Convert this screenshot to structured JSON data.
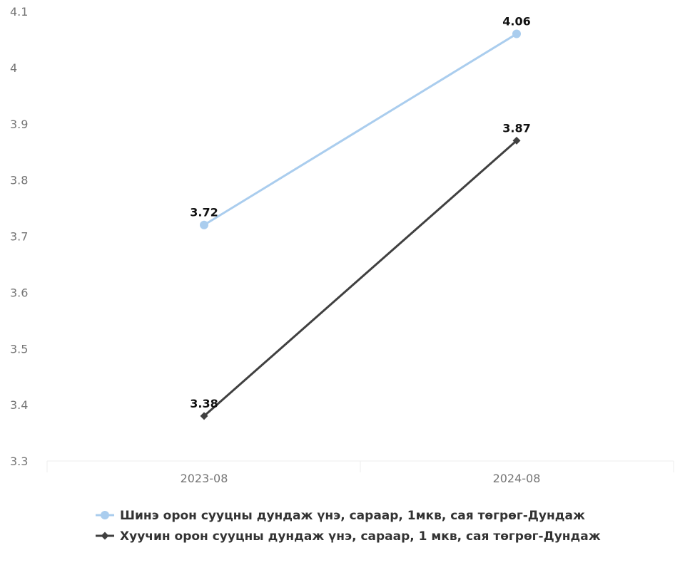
{
  "chart_data": {
    "type": "line",
    "categories": [
      "2023-08",
      "2024-08"
    ],
    "ylim": [
      3.3,
      4.1
    ],
    "yticks": [
      "3.3",
      "3.4",
      "3.5",
      "3.6",
      "3.7",
      "3.8",
      "3.9",
      "4",
      "4.1"
    ],
    "grid": false,
    "legend_position": "bottom",
    "series": [
      {
        "name": "Шинэ орон сууцны дундаж үнэ, сараар, 1мкв, сая төгрөг-Дундаж",
        "values": [
          3.72,
          4.06
        ],
        "labels": [
          "3.72",
          "4.06"
        ],
        "color": "#aacdee",
        "marker": "circle"
      },
      {
        "name": "Хуучин орон сууцны дундаж үнэ, сараар, 1 мкв, сая төгрөг-Дундаж",
        "values": [
          3.38,
          3.87
        ],
        "labels": [
          "3.38",
          "3.87"
        ],
        "color": "#404040",
        "marker": "diamond"
      }
    ]
  }
}
